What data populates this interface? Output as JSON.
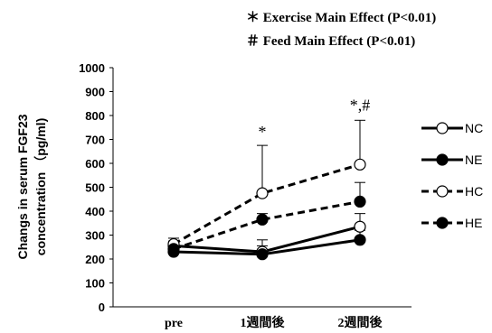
{
  "chart_data": {
    "type": "line",
    "categories": [
      "pre",
      "1週間後",
      "2週間後"
    ],
    "ylabel": [
      "Changs in serum FGF23",
      "concentration （pg/ml)"
    ],
    "ylim": [
      0,
      1000
    ],
    "yticks": [
      "0",
      "100",
      "200",
      "300",
      "400",
      "500",
      "600",
      "700",
      "800",
      "900",
      "1000"
    ],
    "annotations_top": [
      "＊ Exercise Main Effect (P<0.01)",
      "＃ Feed Main Effect (P<0.01)"
    ],
    "point_marks": [
      {
        "category_index": 1,
        "text": "*",
        "y": 710
      },
      {
        "category_index": 2,
        "text": "*,#",
        "y": 820
      }
    ],
    "legend_position": "right",
    "series": [
      {
        "name": "NC",
        "style": "solid",
        "marker": "open",
        "values": [
          255,
          230,
          335
        ],
        "err": [
          20,
          50,
          55
        ]
      },
      {
        "name": "NE",
        "style": "solid",
        "marker": "filled",
        "values": [
          230,
          220,
          280
        ],
        "err": [
          15,
          35,
          40
        ]
      },
      {
        "name": "HC",
        "style": "dashed",
        "marker": "open",
        "values": [
          262,
          475,
          595
        ],
        "err": [
          25,
          200,
          185
        ]
      },
      {
        "name": "HE",
        "style": "dashed",
        "marker": "filled",
        "values": [
          242,
          365,
          440
        ],
        "err": [
          20,
          25,
          80
        ]
      }
    ],
    "grid": false
  },
  "colors": {
    "line": "#000000",
    "background": "#ffffff"
  }
}
